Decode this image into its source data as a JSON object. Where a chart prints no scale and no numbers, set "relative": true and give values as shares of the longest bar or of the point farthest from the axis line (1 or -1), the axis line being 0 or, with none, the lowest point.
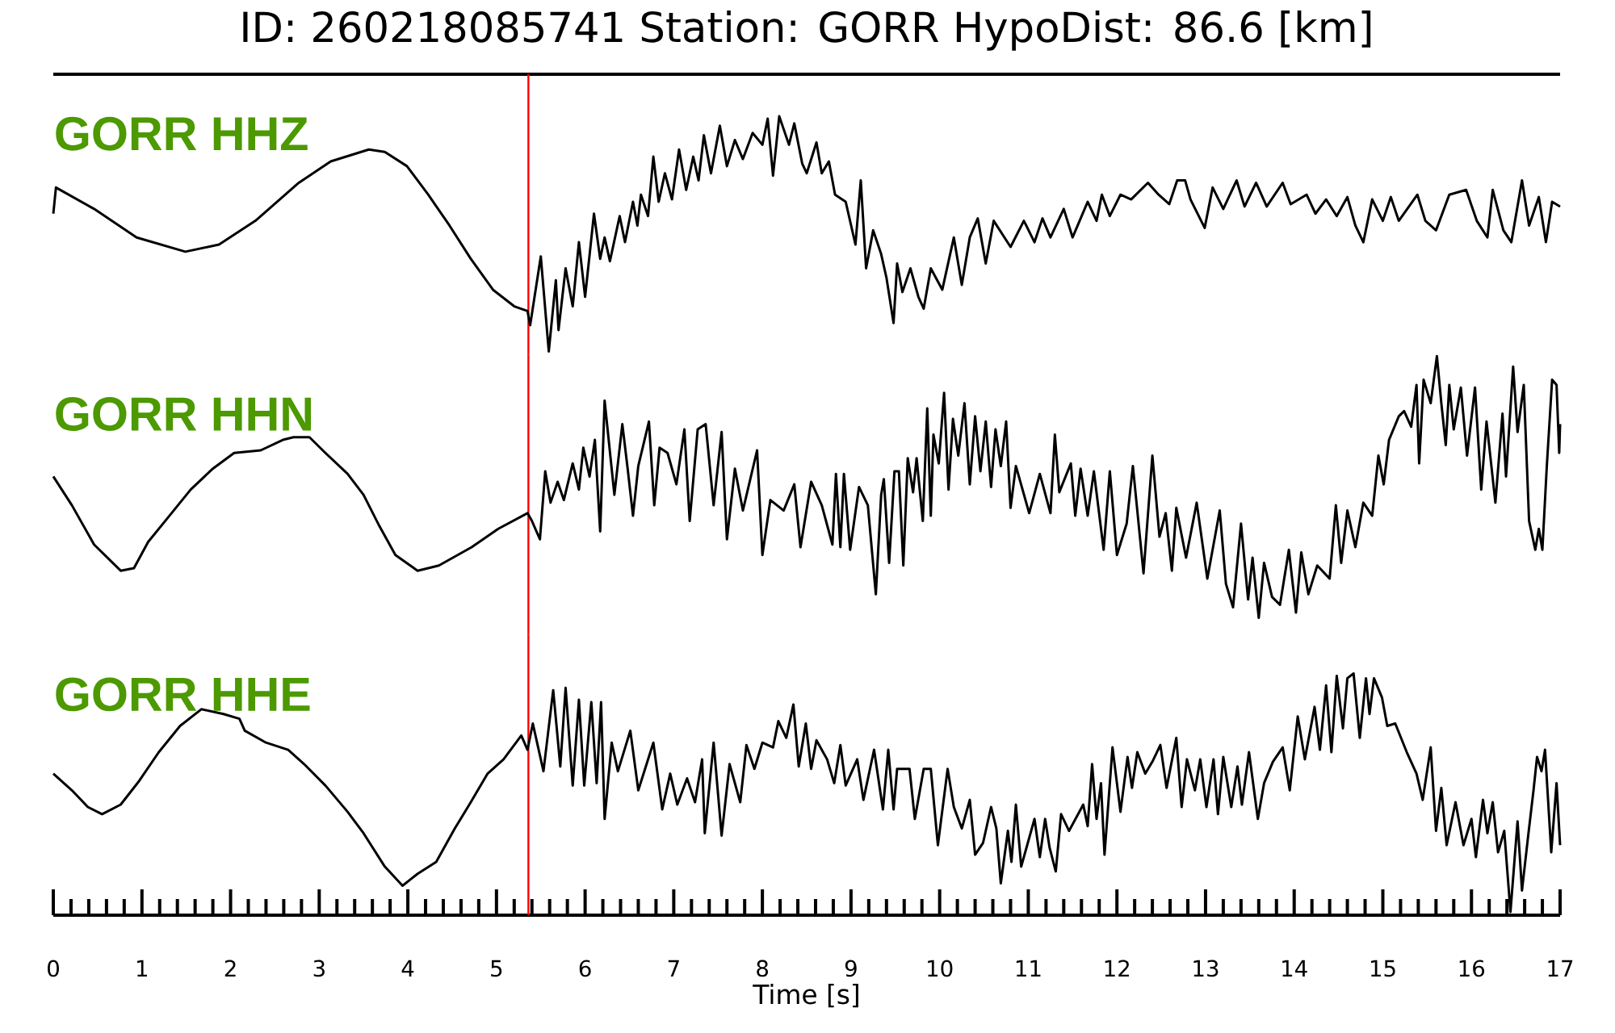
{
  "chart_data": [
    {
      "type": "line",
      "title": "ID: 260218085741   Station: GORR   HypoDist:    86.6 [km]",
      "relative": true,
      "xlim": [
        0,
        17
      ],
      "tick_labels": false,
      "series": [
        {
          "name": "GORR HHZ",
          "color": "#000000",
          "x": [
            0,
            0.03,
            0.46,
            0.94,
            1.49,
            1.87,
            2.28,
            2.77,
            3.13,
            3.56,
            3.74,
            3.99,
            4.23,
            4.47,
            4.71,
            4.96,
            5.2,
            5.35,
            5.38,
            5.5,
            5.59,
            5.67,
            5.7,
            5.78,
            5.86,
            5.93,
            6.0,
            6.1,
            6.17,
            6.22,
            6.28,
            6.39,
            6.45,
            6.54,
            6.59,
            6.63,
            6.71,
            6.77,
            6.83,
            6.9,
            6.98,
            7.06,
            7.14,
            7.22,
            7.28,
            7.34,
            7.42,
            7.52,
            7.6,
            7.69,
            7.78,
            7.89,
            8.0,
            8.06,
            8.12,
            8.19,
            8.3,
            8.36,
            8.45,
            8.5,
            8.61,
            8.67,
            8.75,
            8.82,
            8.94,
            9.05,
            9.11,
            9.17,
            9.25,
            9.34,
            9.4,
            9.48,
            9.52,
            9.58,
            9.67,
            9.76,
            9.82,
            9.9,
            10.03,
            10.16,
            10.25,
            10.34,
            10.43,
            10.52,
            10.61,
            10.8,
            10.95,
            11.07,
            11.16,
            11.25,
            11.4,
            11.5,
            11.67,
            11.77,
            11.83,
            11.92,
            12.04,
            12.16,
            12.35,
            12.47,
            12.59,
            12.68,
            12.77,
            12.83,
            12.99,
            13.08,
            13.2,
            13.35,
            13.44,
            13.57,
            13.69,
            13.87,
            13.96,
            14.14,
            14.24,
            14.36,
            14.48,
            14.6,
            14.69,
            14.78,
            14.88,
            15.0,
            15.09,
            15.18,
            15.39,
            15.48,
            15.6,
            15.75,
            15.94,
            16.06,
            16.18,
            16.24,
            16.36,
            16.45,
            16.57,
            16.65,
            16.76,
            16.84,
            16.91,
            17.0
          ],
          "values": [
            0.59,
            0.7,
            0.61,
            0.49,
            0.43,
            0.46,
            0.56,
            0.72,
            0.81,
            0.86,
            0.85,
            0.79,
            0.67,
            0.54,
            0.4,
            0.27,
            0.2,
            0.18,
            0.12,
            0.41,
            0.01,
            0.31,
            0.1,
            0.36,
            0.2,
            0.47,
            0.24,
            0.59,
            0.4,
            0.49,
            0.39,
            0.58,
            0.47,
            0.64,
            0.54,
            0.67,
            0.58,
            0.83,
            0.64,
            0.76,
            0.65,
            0.86,
            0.69,
            0.83,
            0.73,
            0.92,
            0.76,
            0.96,
            0.79,
            0.9,
            0.82,
            0.93,
            0.88,
            0.99,
            0.75,
            1.0,
            0.88,
            0.97,
            0.8,
            0.76,
            0.89,
            0.76,
            0.81,
            0.67,
            0.64,
            0.46,
            0.73,
            0.36,
            0.52,
            0.42,
            0.32,
            0.13,
            0.38,
            0.26,
            0.36,
            0.24,
            0.19,
            0.36,
            0.27,
            0.49,
            0.29,
            0.49,
            0.57,
            0.38,
            0.56,
            0.45,
            0.56,
            0.47,
            0.57,
            0.49,
            0.61,
            0.49,
            0.64,
            0.56,
            0.67,
            0.58,
            0.67,
            0.65,
            0.72,
            0.67,
            0.63,
            0.73,
            0.73,
            0.65,
            0.53,
            0.7,
            0.61,
            0.73,
            0.62,
            0.72,
            0.62,
            0.72,
            0.63,
            0.67,
            0.59,
            0.65,
            0.58,
            0.66,
            0.54,
            0.47,
            0.65,
            0.56,
            0.66,
            0.56,
            0.67,
            0.56,
            0.52,
            0.67,
            0.69,
            0.56,
            0.49,
            0.69,
            0.52,
            0.47,
            0.73,
            0.54,
            0.66,
            0.47,
            0.64,
            0.62
          ]
        }
      ],
      "ref_lines": [
        {
          "axis": "x",
          "value": 5.36,
          "color": "#ff0000"
        }
      ]
    },
    {
      "type": "line",
      "relative": true,
      "xlim": [
        0,
        17
      ],
      "tick_labels": false,
      "series": [
        {
          "name": "GORR HHN",
          "color": "#000000",
          "x": [
            0,
            0.21,
            0.46,
            0.76,
            0.91,
            1.07,
            1.31,
            1.55,
            1.8,
            2.04,
            2.34,
            2.59,
            2.71,
            2.89,
            3.07,
            3.32,
            3.5,
            3.68,
            3.86,
            4.11,
            4.35,
            4.72,
            5.02,
            5.35,
            5.4,
            5.49,
            5.55,
            5.61,
            5.69,
            5.76,
            5.86,
            5.93,
            5.98,
            6.05,
            6.11,
            6.17,
            6.22,
            6.33,
            6.42,
            6.48,
            6.54,
            6.6,
            6.72,
            6.78,
            6.84,
            6.93,
            7.03,
            7.12,
            7.18,
            7.27,
            7.36,
            7.45,
            7.54,
            7.6,
            7.69,
            7.78,
            7.94,
            8.0,
            8.09,
            8.24,
            8.36,
            8.43,
            8.55,
            8.67,
            8.79,
            8.83,
            8.88,
            8.92,
            8.99,
            9.09,
            9.19,
            9.28,
            9.34,
            9.37,
            9.43,
            9.49,
            9.54,
            9.59,
            9.64,
            9.7,
            9.74,
            9.81,
            9.86,
            9.9,
            9.93,
            9.99,
            10.05,
            10.1,
            10.15,
            10.21,
            10.28,
            10.34,
            10.4,
            10.46,
            10.52,
            10.58,
            10.63,
            10.69,
            10.75,
            10.8,
            10.86,
            11.01,
            11.13,
            11.25,
            11.3,
            11.35,
            11.48,
            11.53,
            11.59,
            11.67,
            11.74,
            11.85,
            11.92,
            12.0,
            12.11,
            12.18,
            12.3,
            12.4,
            12.48,
            12.55,
            12.62,
            12.67,
            12.78,
            12.9,
            13.02,
            13.16,
            13.23,
            13.31,
            13.4,
            13.48,
            13.53,
            13.6,
            13.66,
            13.75,
            13.84,
            13.94,
            14.02,
            14.08,
            14.16,
            14.26,
            14.4,
            14.47,
            14.53,
            14.6,
            14.69,
            14.78,
            14.88,
            14.95,
            15.01,
            15.07,
            15.18,
            15.24,
            15.32,
            15.38,
            15.41,
            15.46,
            15.54,
            15.61,
            15.66,
            15.71,
            15.75,
            15.8,
            15.88,
            15.95,
            16.04,
            16.11,
            16.17,
            16.27,
            16.35,
            16.39,
            16.47,
            16.52,
            16.59,
            16.65,
            16.72,
            16.76,
            16.8,
            16.85,
            16.91,
            16.96,
            16.99,
            17.0
          ],
          "values": [
            0.54,
            0.43,
            0.28,
            0.18,
            0.19,
            0.29,
            0.39,
            0.49,
            0.57,
            0.63,
            0.64,
            0.68,
            0.69,
            0.69,
            0.63,
            0.55,
            0.47,
            0.35,
            0.24,
            0.18,
            0.2,
            0.27,
            0.34,
            0.4,
            0.37,
            0.3,
            0.56,
            0.44,
            0.52,
            0.45,
            0.59,
            0.49,
            0.65,
            0.54,
            0.68,
            0.33,
            0.83,
            0.47,
            0.74,
            0.57,
            0.39,
            0.58,
            0.75,
            0.43,
            0.65,
            0.63,
            0.51,
            0.72,
            0.37,
            0.72,
            0.74,
            0.43,
            0.71,
            0.3,
            0.57,
            0.41,
            0.64,
            0.24,
            0.45,
            0.41,
            0.51,
            0.27,
            0.52,
            0.43,
            0.28,
            0.55,
            0.27,
            0.55,
            0.26,
            0.5,
            0.43,
            0.09,
            0.47,
            0.53,
            0.21,
            0.56,
            0.56,
            0.2,
            0.61,
            0.48,
            0.61,
            0.37,
            0.8,
            0.39,
            0.7,
            0.59,
            0.86,
            0.49,
            0.76,
            0.62,
            0.82,
            0.51,
            0.77,
            0.56,
            0.75,
            0.5,
            0.72,
            0.58,
            0.75,
            0.42,
            0.58,
            0.4,
            0.55,
            0.4,
            0.7,
            0.48,
            0.59,
            0.39,
            0.57,
            0.39,
            0.56,
            0.26,
            0.56,
            0.24,
            0.36,
            0.58,
            0.17,
            0.62,
            0.31,
            0.4,
            0.18,
            0.42,
            0.23,
            0.44,
            0.15,
            0.41,
            0.13,
            0.04,
            0.36,
            0.07,
            0.23,
            0.0,
            0.21,
            0.08,
            0.05,
            0.26,
            0.02,
            0.25,
            0.09,
            0.2,
            0.15,
            0.43,
            0.21,
            0.41,
            0.27,
            0.44,
            0.39,
            0.62,
            0.51,
            0.68,
            0.77,
            0.79,
            0.73,
            0.89,
            0.59,
            0.91,
            0.82,
            1.0,
            0.82,
            0.66,
            0.89,
            0.72,
            0.88,
            0.62,
            0.88,
            0.49,
            0.75,
            0.44,
            0.78,
            0.54,
            0.96,
            0.71,
            0.89,
            0.37,
            0.26,
            0.34,
            0.26,
            0.58,
            0.91,
            0.89,
            0.63,
            0.74
          ]
        }
      ],
      "ref_lines": [
        {
          "axis": "x",
          "value": 5.36,
          "color": "#ff0000"
        }
      ]
    },
    {
      "type": "line",
      "xlabel": "Time [s]",
      "relative": true,
      "xlim": [
        0,
        17
      ],
      "tick_labels": "x",
      "xticks": [
        0,
        {
          "value": 0.2,
          "label": null
        },
        {
          "value": 0.4,
          "label": null
        },
        {
          "value": 0.6,
          "label": null
        },
        {
          "value": 0.8,
          "label": null
        },
        1,
        {
          "value": 1.2,
          "label": null
        },
        {
          "value": 1.4,
          "label": null
        },
        {
          "value": 1.6,
          "label": null
        },
        {
          "value": 1.8,
          "label": null
        },
        2,
        {
          "value": 2.2,
          "label": null
        },
        {
          "value": 2.4,
          "label": null
        },
        {
          "value": 2.6,
          "label": null
        },
        {
          "value": 2.8,
          "label": null
        },
        3,
        {
          "value": 3.2,
          "label": null
        },
        {
          "value": 3.4,
          "label": null
        },
        {
          "value": 3.6,
          "label": null
        },
        {
          "value": 3.8,
          "label": null
        },
        4,
        {
          "value": 4.2,
          "label": null
        },
        {
          "value": 4.4,
          "label": null
        },
        {
          "value": 4.6,
          "label": null
        },
        {
          "value": 4.8,
          "label": null
        },
        5,
        {
          "value": 5.2,
          "label": null
        },
        {
          "value": 5.4,
          "label": null
        },
        {
          "value": 5.6,
          "label": null
        },
        {
          "value": 5.8,
          "label": null
        },
        6,
        {
          "value": 6.2,
          "label": null
        },
        {
          "value": 6.4,
          "label": null
        },
        {
          "value": 6.6,
          "label": null
        },
        {
          "value": 6.8,
          "label": null
        },
        7,
        {
          "value": 7.2,
          "label": null
        },
        {
          "value": 7.4,
          "label": null
        },
        {
          "value": 7.6,
          "label": null
        },
        {
          "value": 7.8,
          "label": null
        },
        8,
        {
          "value": 8.2,
          "label": null
        },
        {
          "value": 8.4,
          "label": null
        },
        {
          "value": 8.6,
          "label": null
        },
        {
          "value": 8.8,
          "label": null
        },
        9,
        {
          "value": 9.2,
          "label": null
        },
        {
          "value": 9.4,
          "label": null
        },
        {
          "value": 9.6,
          "label": null
        },
        {
          "value": 9.8,
          "label": null
        },
        10,
        {
          "value": 10.2,
          "label": null
        },
        {
          "value": 10.4,
          "label": null
        },
        {
          "value": 10.6,
          "label": null
        },
        {
          "value": 10.8,
          "label": null
        },
        11,
        {
          "value": 11.2,
          "label": null
        },
        {
          "value": 11.4,
          "label": null
        },
        {
          "value": 11.6,
          "label": null
        },
        {
          "value": 11.8,
          "label": null
        },
        12,
        {
          "value": 12.2,
          "label": null
        },
        {
          "value": 12.4,
          "label": null
        },
        {
          "value": 12.6,
          "label": null
        },
        {
          "value": 12.8,
          "label": null
        },
        13,
        {
          "value": 13.2,
          "label": null
        },
        {
          "value": 13.4,
          "label": null
        },
        {
          "value": 13.6,
          "label": null
        },
        {
          "value": 13.8,
          "label": null
        },
        14,
        {
          "value": 14.2,
          "label": null
        },
        {
          "value": 14.4,
          "label": null
        },
        {
          "value": 14.6,
          "label": null
        },
        {
          "value": 14.8,
          "label": null
        },
        15,
        {
          "value": 15.2,
          "label": null
        },
        {
          "value": 15.4,
          "label": null
        },
        {
          "value": 15.6,
          "label": null
        },
        {
          "value": 15.8,
          "label": null
        },
        16,
        {
          "value": 16.2,
          "label": null
        },
        {
          "value": 16.4,
          "label": null
        },
        {
          "value": 16.6,
          "label": null
        },
        {
          "value": 16.8,
          "label": null
        },
        17
      ],
      "series": [
        {
          "name": "GORR HHE",
          "color": "#000000",
          "x": [
            0,
            0.21,
            0.39,
            0.55,
            0.76,
            0.97,
            1.19,
            1.43,
            1.67,
            1.92,
            2.1,
            2.16,
            2.4,
            2.65,
            2.83,
            3.07,
            3.32,
            3.5,
            3.74,
            3.94,
            4.11,
            4.32,
            4.53,
            4.71,
            4.9,
            5.08,
            5.28,
            5.35,
            5.41,
            5.53,
            5.64,
            5.72,
            5.78,
            5.86,
            5.93,
            5.99,
            6.07,
            6.13,
            6.18,
            6.22,
            6.3,
            6.37,
            6.51,
            6.6,
            6.77,
            6.87,
            6.96,
            7.04,
            7.15,
            7.24,
            7.32,
            7.35,
            7.45,
            7.54,
            7.63,
            7.75,
            7.82,
            7.91,
            8.0,
            8.12,
            8.18,
            8.27,
            8.35,
            8.41,
            8.49,
            8.55,
            8.61,
            8.73,
            8.81,
            8.88,
            8.94,
            9.07,
            9.14,
            9.26,
            9.36,
            9.42,
            9.48,
            9.52,
            9.66,
            9.72,
            9.82,
            9.9,
            9.98,
            10.09,
            10.16,
            10.25,
            10.34,
            10.4,
            10.49,
            10.58,
            10.64,
            10.69,
            10.77,
            10.81,
            10.86,
            10.92,
            11.07,
            11.13,
            11.19,
            11.24,
            11.31,
            11.37,
            11.46,
            11.62,
            11.67,
            11.72,
            11.77,
            11.82,
            11.86,
            11.95,
            12.04,
            12.12,
            12.17,
            12.23,
            12.32,
            12.4,
            12.49,
            12.56,
            12.67,
            12.73,
            12.79,
            12.88,
            12.94,
            13.01,
            13.09,
            13.14,
            13.2,
            13.29,
            13.36,
            13.41,
            13.49,
            13.59,
            13.66,
            13.76,
            13.87,
            13.95,
            14.04,
            14.12,
            14.23,
            14.29,
            14.36,
            14.42,
            14.48,
            14.55,
            14.6,
            14.67,
            14.74,
            14.81,
            14.85,
            14.9,
            14.99,
            15.05,
            15.14,
            15.27,
            15.38,
            15.45,
            15.54,
            15.6,
            15.66,
            15.72,
            15.82,
            15.91,
            16.0,
            16.05,
            16.13,
            16.18,
            16.24,
            16.3,
            16.37,
            16.44,
            16.52,
            16.57,
            16.64,
            16.7,
            16.74,
            16.79,
            16.83,
            16.9,
            16.96,
            17.0
          ],
          "values": [
            0.58,
            0.51,
            0.44,
            0.41,
            0.45,
            0.55,
            0.67,
            0.78,
            0.85,
            0.83,
            0.81,
            0.76,
            0.71,
            0.68,
            0.62,
            0.53,
            0.42,
            0.33,
            0.19,
            0.11,
            0.16,
            0.21,
            0.35,
            0.46,
            0.58,
            0.64,
            0.74,
            0.68,
            0.79,
            0.59,
            0.93,
            0.61,
            0.94,
            0.53,
            0.89,
            0.53,
            0.88,
            0.54,
            0.88,
            0.39,
            0.71,
            0.59,
            0.76,
            0.51,
            0.71,
            0.43,
            0.58,
            0.45,
            0.56,
            0.46,
            0.64,
            0.33,
            0.71,
            0.32,
            0.62,
            0.46,
            0.7,
            0.6,
            0.71,
            0.69,
            0.8,
            0.73,
            0.87,
            0.61,
            0.79,
            0.6,
            0.72,
            0.64,
            0.54,
            0.7,
            0.53,
            0.64,
            0.47,
            0.68,
            0.43,
            0.68,
            0.43,
            0.6,
            0.6,
            0.39,
            0.6,
            0.6,
            0.28,
            0.6,
            0.44,
            0.35,
            0.47,
            0.24,
            0.29,
            0.44,
            0.35,
            0.12,
            0.34,
            0.21,
            0.45,
            0.19,
            0.39,
            0.23,
            0.39,
            0.27,
            0.17,
            0.41,
            0.34,
            0.45,
            0.36,
            0.62,
            0.39,
            0.54,
            0.24,
            0.69,
            0.42,
            0.65,
            0.52,
            0.67,
            0.58,
            0.63,
            0.7,
            0.52,
            0.73,
            0.44,
            0.64,
            0.51,
            0.64,
            0.44,
            0.64,
            0.41,
            0.65,
            0.44,
            0.61,
            0.45,
            0.67,
            0.39,
            0.54,
            0.63,
            0.69,
            0.51,
            0.82,
            0.64,
            0.86,
            0.68,
            0.95,
            0.67,
            0.99,
            0.77,
            0.98,
            1.0,
            0.73,
            0.98,
            0.83,
            0.98,
            0.9,
            0.78,
            0.79,
            0.67,
            0.58,
            0.47,
            0.69,
            0.34,
            0.52,
            0.28,
            0.46,
            0.28,
            0.39,
            0.23,
            0.47,
            0.33,
            0.46,
            0.25,
            0.34,
            0.0,
            0.38,
            0.09,
            0.32,
            0.51,
            0.65,
            0.59,
            0.68,
            0.25,
            0.54,
            0.28
          ]
        }
      ],
      "ref_lines": [
        {
          "axis": "x",
          "value": 5.36,
          "color": "#ff0000"
        }
      ]
    }
  ]
}
